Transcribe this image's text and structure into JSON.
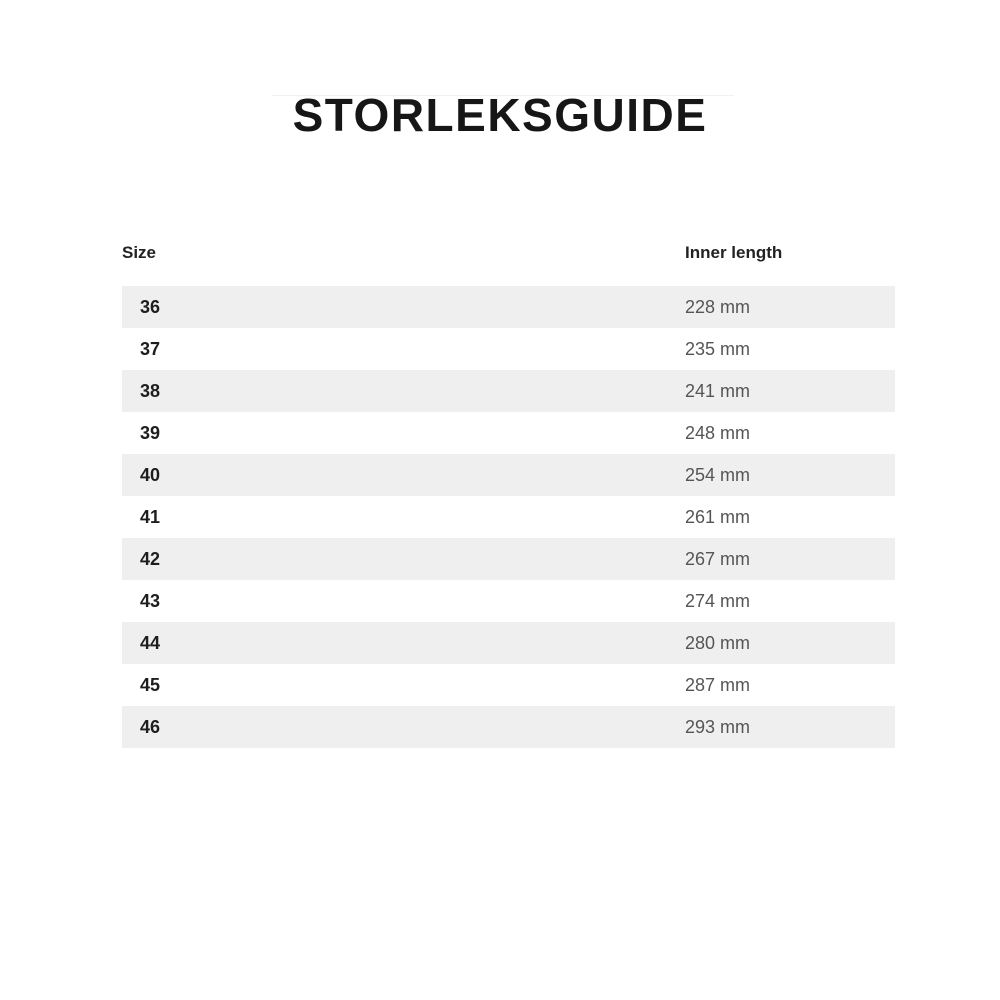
{
  "title": "STORLEKSGUIDE",
  "table": {
    "headers": [
      "Size",
      "Inner length"
    ],
    "rows": [
      {
        "size": "36",
        "length": "228 mm"
      },
      {
        "size": "37",
        "length": "235 mm"
      },
      {
        "size": "38",
        "length": "241 mm"
      },
      {
        "size": "39",
        "length": "248 mm"
      },
      {
        "size": "40",
        "length": "254 mm"
      },
      {
        "size": "41",
        "length": "261 mm"
      },
      {
        "size": "42",
        "length": "267 mm"
      },
      {
        "size": "43",
        "length": "274 mm"
      },
      {
        "size": "44",
        "length": "280 mm"
      },
      {
        "size": "45",
        "length": "287 mm"
      },
      {
        "size": "46",
        "length": "293 mm"
      }
    ]
  }
}
